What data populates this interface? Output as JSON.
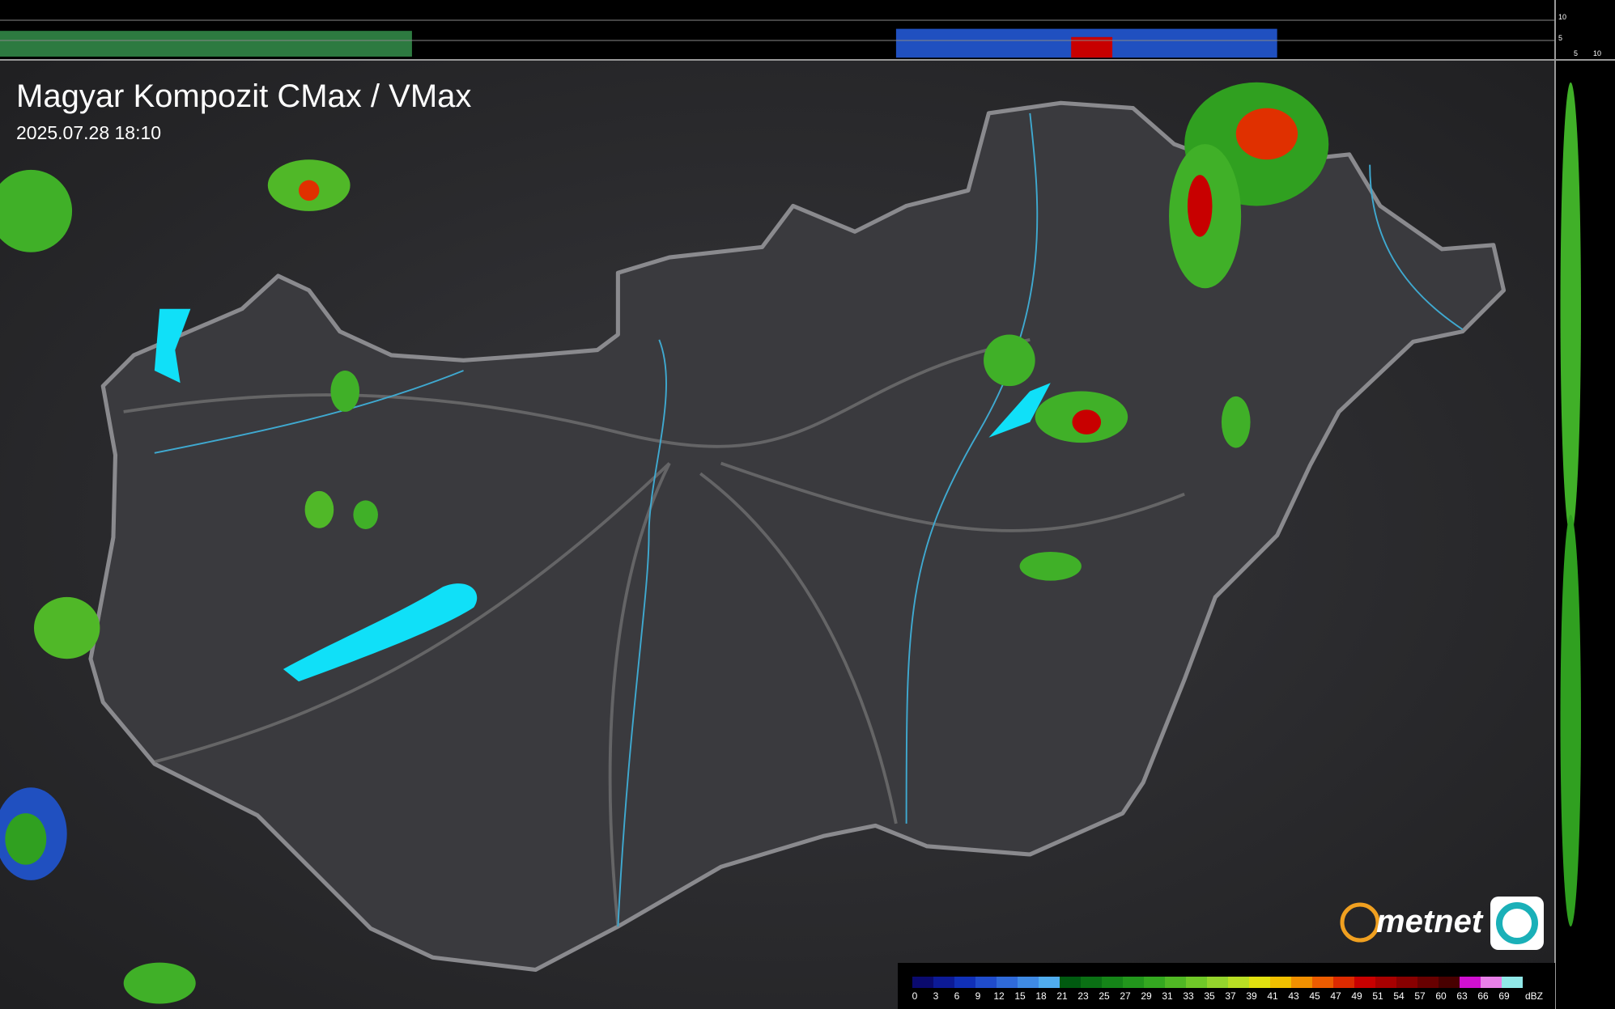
{
  "header": {
    "title": "Magyar Kompozit CMax / VMax",
    "timestamp": "2025.07.28 18:10"
  },
  "side_scale": {
    "top_labels": [
      "10",
      "5"
    ],
    "right_labels": [
      "5",
      "10"
    ]
  },
  "brand": "metnet",
  "legend": {
    "unit": "dBZ",
    "steps": [
      {
        "value": 0,
        "color": "#0a0a6e"
      },
      {
        "value": 3,
        "color": "#0c1a96"
      },
      {
        "value": 6,
        "color": "#1030b8"
      },
      {
        "value": 9,
        "color": "#1f4ccc"
      },
      {
        "value": 12,
        "color": "#2f6ad9"
      },
      {
        "value": 15,
        "color": "#3f8ae4"
      },
      {
        "value": 18,
        "color": "#50acee"
      },
      {
        "value": 21,
        "color": "#005a10"
      },
      {
        "value": 23,
        "color": "#0a7014"
      },
      {
        "value": 25,
        "color": "#158418"
      },
      {
        "value": 27,
        "color": "#22961c"
      },
      {
        "value": 29,
        "color": "#34a820"
      },
      {
        "value": 31,
        "color": "#50b824"
      },
      {
        "value": 33,
        "color": "#70c828"
      },
      {
        "value": 35,
        "color": "#94d42c"
      },
      {
        "value": 37,
        "color": "#b8de24"
      },
      {
        "value": 39,
        "color": "#e0e010"
      },
      {
        "value": 41,
        "color": "#f0c000"
      },
      {
        "value": 43,
        "color": "#f09000"
      },
      {
        "value": 45,
        "color": "#ec5c00"
      },
      {
        "value": 47,
        "color": "#dc2a00"
      },
      {
        "value": 49,
        "color": "#c80000"
      },
      {
        "value": 51,
        "color": "#a80000"
      },
      {
        "value": 54,
        "color": "#880000"
      },
      {
        "value": 57,
        "color": "#680000"
      },
      {
        "value": 60,
        "color": "#480000"
      },
      {
        "value": 63,
        "color": "#d010d0"
      },
      {
        "value": 66,
        "color": "#e880e8"
      },
      {
        "value": 69,
        "color": "#90e8e8"
      }
    ]
  }
}
